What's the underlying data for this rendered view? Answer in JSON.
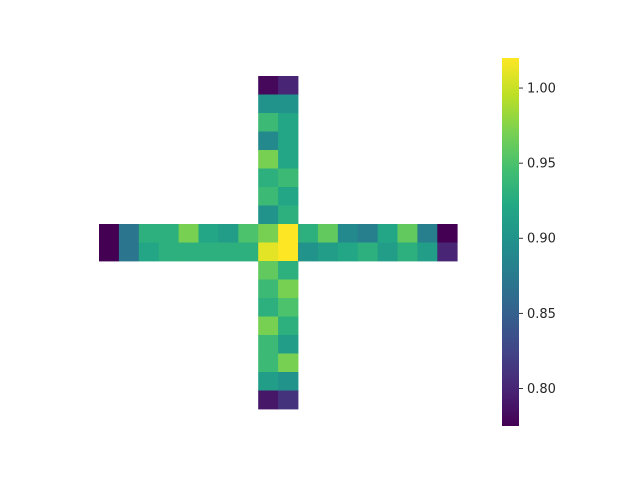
{
  "chart_data": {
    "type": "heatmap",
    "title": "",
    "xlabel": "",
    "ylabel": "",
    "grid": false,
    "rows": 18,
    "cols": 18,
    "vmin": 0.775,
    "vmax": 1.02,
    "colormap": "viridis",
    "values": [
      [
        null,
        null,
        null,
        null,
        null,
        null,
        null,
        null,
        0.78,
        0.8,
        null,
        null,
        null,
        null,
        null,
        null,
        null,
        null
      ],
      [
        null,
        null,
        null,
        null,
        null,
        null,
        null,
        null,
        0.9,
        0.9,
        null,
        null,
        null,
        null,
        null,
        null,
        null,
        null
      ],
      [
        null,
        null,
        null,
        null,
        null,
        null,
        null,
        null,
        0.94,
        0.92,
        null,
        null,
        null,
        null,
        null,
        null,
        null,
        null
      ],
      [
        null,
        null,
        null,
        null,
        null,
        null,
        null,
        null,
        0.89,
        0.92,
        null,
        null,
        null,
        null,
        null,
        null,
        null,
        null
      ],
      [
        null,
        null,
        null,
        null,
        null,
        null,
        null,
        null,
        0.97,
        0.92,
        null,
        null,
        null,
        null,
        null,
        null,
        null,
        null
      ],
      [
        null,
        null,
        null,
        null,
        null,
        null,
        null,
        null,
        0.93,
        0.94,
        null,
        null,
        null,
        null,
        null,
        null,
        null,
        null
      ],
      [
        null,
        null,
        null,
        null,
        null,
        null,
        null,
        null,
        0.94,
        0.92,
        null,
        null,
        null,
        null,
        null,
        null,
        null,
        null
      ],
      [
        null,
        null,
        null,
        null,
        null,
        null,
        null,
        null,
        0.9,
        0.93,
        null,
        null,
        null,
        null,
        null,
        null,
        null,
        null
      ],
      [
        0.775,
        0.87,
        0.93,
        0.93,
        0.97,
        0.92,
        0.91,
        0.95,
        0.97,
        1.02,
        0.93,
        0.96,
        0.89,
        0.88,
        0.92,
        0.96,
        0.88,
        0.775
      ],
      [
        0.775,
        0.87,
        0.92,
        0.93,
        0.93,
        0.93,
        0.93,
        0.93,
        1.01,
        1.02,
        0.9,
        0.91,
        0.92,
        0.93,
        0.91,
        0.93,
        0.91,
        0.8
      ],
      [
        null,
        null,
        null,
        null,
        null,
        null,
        null,
        null,
        0.96,
        0.93,
        null,
        null,
        null,
        null,
        null,
        null,
        null,
        null
      ],
      [
        null,
        null,
        null,
        null,
        null,
        null,
        null,
        null,
        0.94,
        0.97,
        null,
        null,
        null,
        null,
        null,
        null,
        null,
        null
      ],
      [
        null,
        null,
        null,
        null,
        null,
        null,
        null,
        null,
        0.93,
        0.95,
        null,
        null,
        null,
        null,
        null,
        null,
        null,
        null
      ],
      [
        null,
        null,
        null,
        null,
        null,
        null,
        null,
        null,
        0.97,
        0.93,
        null,
        null,
        null,
        null,
        null,
        null,
        null,
        null
      ],
      [
        null,
        null,
        null,
        null,
        null,
        null,
        null,
        null,
        0.94,
        0.91,
        null,
        null,
        null,
        null,
        null,
        null,
        null,
        null
      ],
      [
        null,
        null,
        null,
        null,
        null,
        null,
        null,
        null,
        0.94,
        0.97,
        null,
        null,
        null,
        null,
        null,
        null,
        null,
        null
      ],
      [
        null,
        null,
        null,
        null,
        null,
        null,
        null,
        null,
        0.91,
        0.9,
        null,
        null,
        null,
        null,
        null,
        null,
        null,
        null
      ],
      [
        null,
        null,
        null,
        null,
        null,
        null,
        null,
        null,
        0.79,
        0.81,
        null,
        null,
        null,
        null,
        null,
        null,
        null,
        null
      ]
    ],
    "colorbar": {
      "ticks": [
        0.8,
        0.85,
        0.9,
        0.95,
        1.0
      ],
      "tick_labels": [
        "0.80",
        "0.85",
        "0.90",
        "0.95",
        "1.00"
      ]
    }
  }
}
